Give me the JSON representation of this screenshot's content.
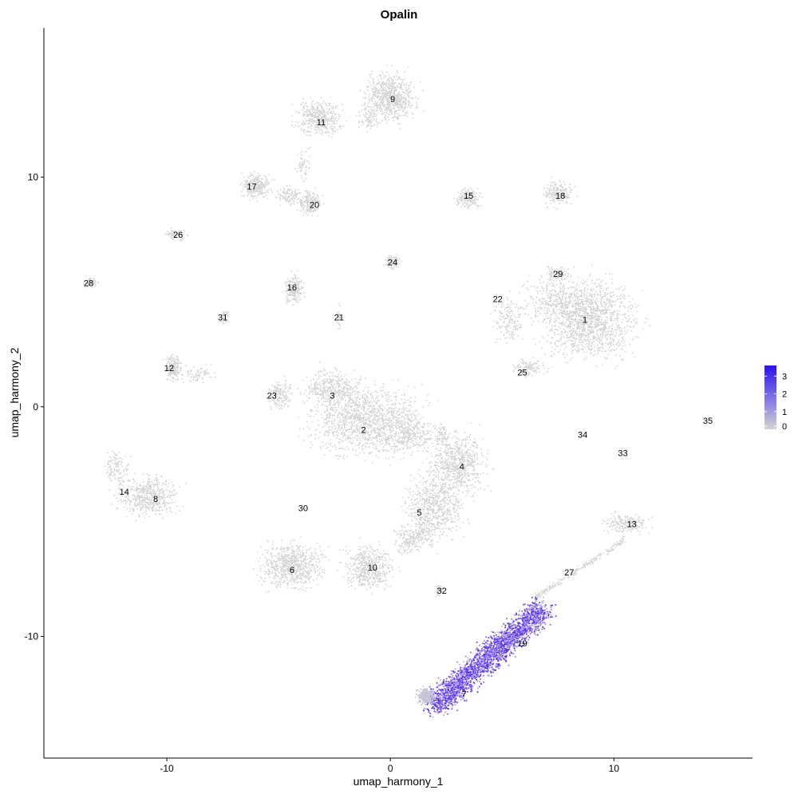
{
  "chart_data": {
    "type": "scatter",
    "title": "Opalin",
    "xlabel": "umap_harmony_1",
    "ylabel": "umap_harmony_2",
    "xlim": [
      -15.5,
      16.2
    ],
    "ylim": [
      -15.3,
      16.5
    ],
    "x_ticks": [
      -10,
      0,
      10
    ],
    "y_ticks": [
      -10,
      0,
      10
    ],
    "grid": false,
    "legend": {
      "position": "right",
      "ticks": [
        0,
        1,
        2,
        3
      ],
      "low_color": "#d3d3d3",
      "high_color": "#2a12f0"
    },
    "clusters": [
      {
        "label": "1",
        "x": 8.7,
        "y": 3.8
      },
      {
        "label": "2",
        "x": -1.2,
        "y": -1.0
      },
      {
        "label": "3",
        "x": -2.6,
        "y": 0.5
      },
      {
        "label": "4",
        "x": 3.2,
        "y": -2.6
      },
      {
        "label": "5",
        "x": 1.3,
        "y": -4.6
      },
      {
        "label": "6",
        "x": -4.4,
        "y": -7.1
      },
      {
        "label": "7",
        "x": 3.3,
        "y": -12.5
      },
      {
        "label": "8",
        "x": -10.5,
        "y": -4.0
      },
      {
        "label": "9",
        "x": 0.1,
        "y": 13.4
      },
      {
        "label": "10",
        "x": -0.8,
        "y": -7.0
      },
      {
        "label": "11",
        "x": -3.1,
        "y": 12.4
      },
      {
        "label": "12",
        "x": -9.9,
        "y": 1.7
      },
      {
        "label": "13",
        "x": 10.8,
        "y": -5.1
      },
      {
        "label": "14",
        "x": -11.9,
        "y": -3.7
      },
      {
        "label": "15",
        "x": 3.5,
        "y": 9.2
      },
      {
        "label": "16",
        "x": -4.4,
        "y": 5.2
      },
      {
        "label": "17",
        "x": -6.2,
        "y": 9.6
      },
      {
        "label": "18",
        "x": 7.6,
        "y": 9.2
      },
      {
        "label": "19",
        "x": 5.9,
        "y": -10.3
      },
      {
        "label": "20",
        "x": -3.4,
        "y": 8.8
      },
      {
        "label": "21",
        "x": -2.3,
        "y": 3.9
      },
      {
        "label": "22",
        "x": 4.8,
        "y": 4.7
      },
      {
        "label": "23",
        "x": -5.3,
        "y": 0.5
      },
      {
        "label": "24",
        "x": 0.1,
        "y": 6.3
      },
      {
        "label": "25",
        "x": 5.9,
        "y": 1.5
      },
      {
        "label": "26",
        "x": -9.5,
        "y": 7.5
      },
      {
        "label": "27",
        "x": 8.0,
        "y": -7.2
      },
      {
        "label": "28",
        "x": -13.5,
        "y": 5.4
      },
      {
        "label": "29",
        "x": 7.5,
        "y": 5.8
      },
      {
        "label": "30",
        "x": -3.9,
        "y": -4.4
      },
      {
        "label": "31",
        "x": -7.5,
        "y": 3.9
      },
      {
        "label": "32",
        "x": 2.3,
        "y": -8.0
      },
      {
        "label": "33",
        "x": 10.4,
        "y": -2.0
      },
      {
        "label": "34",
        "x": 8.6,
        "y": -1.2
      },
      {
        "label": "35",
        "x": 14.2,
        "y": -0.6
      }
    ]
  }
}
